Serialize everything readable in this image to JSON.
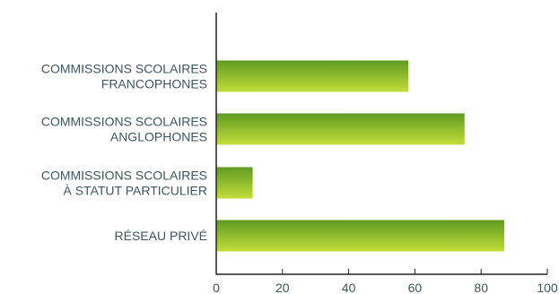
{
  "chart_data": {
    "type": "bar",
    "orientation": "horizontal",
    "categories": [
      [
        "COMMISSIONS SCOLAIRES",
        "FRANCOPHONES"
      ],
      [
        "COMMISSIONS SCOLAIRES",
        "ANGLOPHONES"
      ],
      [
        "COMMISSIONS SCOLAIRES",
        "À STATUT PARTICULIER"
      ],
      [
        "RÉSEAU PRIVÉ"
      ]
    ],
    "values": [
      58,
      75,
      11,
      87
    ],
    "xlim": [
      0,
      100
    ],
    "x_ticks": [
      0,
      20,
      40,
      60,
      80,
      100
    ],
    "grid": false,
    "colors": {
      "bar_top": "#5f9a22",
      "bar_bottom": "#c2de3a",
      "text": "#3d5560",
      "axis": "#222222"
    }
  }
}
